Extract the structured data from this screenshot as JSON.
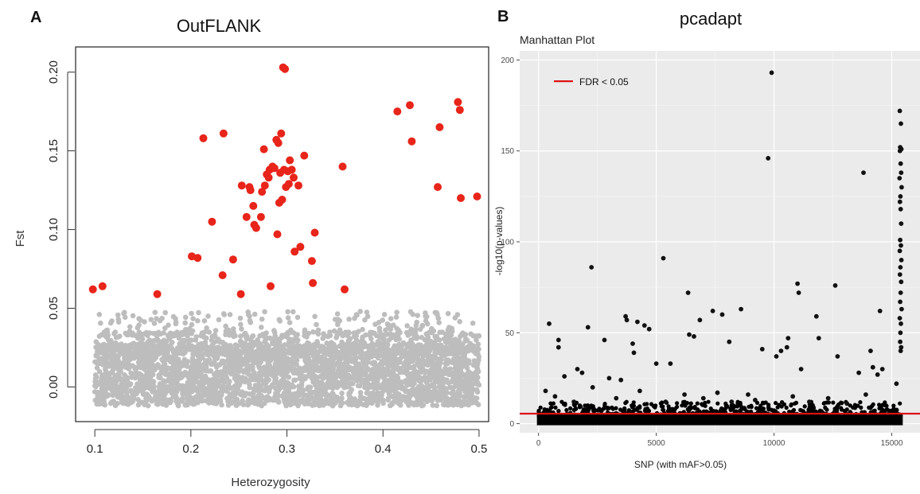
{
  "figure": {
    "label_a": "A",
    "label_b": "B"
  },
  "chart_data": [
    {
      "type": "scatter",
      "panel": "A",
      "title": "OutFLANK",
      "xlabel": "Heterozygosity",
      "ylabel": "Fst",
      "xlim": [
        0.08,
        0.51
      ],
      "ylim": [
        -0.022,
        0.216
      ],
      "xticks": [
        0.1,
        0.2,
        0.3,
        0.4,
        0.5
      ],
      "xtick_labels": [
        "0.1",
        "0.2",
        "0.3",
        "0.4",
        "0.5"
      ],
      "yticks": [
        0.0,
        0.05,
        0.1,
        0.15,
        0.2
      ],
      "ytick_labels": [
        "0.00",
        "0.05",
        "0.10",
        "0.15",
        "0.20"
      ],
      "grid": false,
      "background_cloud": {
        "color": "#bdbdbd",
        "x_range": [
          0.1,
          0.5
        ],
        "y_range": [
          -0.015,
          0.048
        ],
        "description": "non-outlier SNPs"
      },
      "series": [
        {
          "color": "#e8251a",
          "points": [
            [
              0.098,
              0.062
            ],
            [
              0.108,
              0.064
            ],
            [
              0.165,
              0.059
            ],
            [
              0.201,
              0.083
            ],
            [
              0.207,
              0.082
            ],
            [
              0.213,
              0.158
            ],
            [
              0.222,
              0.105
            ],
            [
              0.234,
              0.161
            ],
            [
              0.233,
              0.071
            ],
            [
              0.244,
              0.081
            ],
            [
              0.252,
              0.059
            ],
            [
              0.253,
              0.128
            ],
            [
              0.258,
              0.108
            ],
            [
              0.261,
              0.127
            ],
            [
              0.262,
              0.125
            ],
            [
              0.265,
              0.115
            ],
            [
              0.266,
              0.103
            ],
            [
              0.268,
              0.101
            ],
            [
              0.273,
              0.108
            ],
            [
              0.274,
              0.124
            ],
            [
              0.276,
              0.151
            ],
            [
              0.277,
              0.128
            ],
            [
              0.279,
              0.135
            ],
            [
              0.281,
              0.133
            ],
            [
              0.282,
              0.138
            ],
            [
              0.283,
              0.064
            ],
            [
              0.285,
              0.14
            ],
            [
              0.287,
              0.139
            ],
            [
              0.289,
              0.157
            ],
            [
              0.29,
              0.097
            ],
            [
              0.291,
              0.155
            ],
            [
              0.292,
              0.117
            ],
            [
              0.293,
              0.136
            ],
            [
              0.294,
              0.161
            ],
            [
              0.295,
              0.119
            ],
            [
              0.296,
              0.203
            ],
            [
              0.297,
              0.138
            ],
            [
              0.298,
              0.202
            ],
            [
              0.299,
              0.127
            ],
            [
              0.301,
              0.137
            ],
            [
              0.302,
              0.129
            ],
            [
              0.303,
              0.144
            ],
            [
              0.305,
              0.138
            ],
            [
              0.307,
              0.133
            ],
            [
              0.308,
              0.086
            ],
            [
              0.312,
              0.128
            ],
            [
              0.314,
              0.089
            ],
            [
              0.318,
              0.147
            ],
            [
              0.326,
              0.08
            ],
            [
              0.327,
              0.066
            ],
            [
              0.329,
              0.098
            ],
            [
              0.358,
              0.14
            ],
            [
              0.36,
              0.062
            ],
            [
              0.415,
              0.175
            ],
            [
              0.428,
              0.179
            ],
            [
              0.43,
              0.156
            ],
            [
              0.457,
              0.127
            ],
            [
              0.459,
              0.165
            ],
            [
              0.478,
              0.181
            ],
            [
              0.48,
              0.176
            ],
            [
              0.481,
              0.12
            ],
            [
              0.498,
              0.121
            ]
          ]
        }
      ]
    },
    {
      "type": "scatter",
      "panel": "B",
      "title": "pcadapt",
      "subtitle": "Manhattan Plot",
      "xlabel": "SNP (with mAF>0.05)",
      "ylabel": "-log10(p-values)",
      "xlim": [
        -800,
        16200
      ],
      "ylim": [
        -5,
        205
      ],
      "xticks": [
        0,
        5000,
        10000,
        15000
      ],
      "xtick_labels": [
        "0",
        "5000",
        "10000",
        "15000"
      ],
      "yticks": [
        0,
        50,
        100,
        150,
        200
      ],
      "ytick_labels": [
        "0",
        "50",
        "100",
        "150",
        "200"
      ],
      "grid": true,
      "panel_background": "#ebebeb",
      "legend": {
        "position": "top-left",
        "entries": [
          {
            "label": "FDR < 0.05",
            "color": "#dd1111"
          }
        ]
      },
      "threshold_line": {
        "y": 5.5,
        "color": "#dd1111"
      },
      "dense_band": {
        "y_range": [
          0,
          5
        ],
        "color": "#000000",
        "description": "non-significant SNPs along baseline"
      },
      "series": [
        {
          "color": "#111111",
          "points": [
            [
              9900,
              193
            ],
            [
              9750,
              146
            ],
            [
              13800,
              138
            ],
            [
              5300,
              91
            ],
            [
              2250,
              86
            ],
            [
              6350,
              72
            ],
            [
              11000,
              77
            ],
            [
              11050,
              72
            ],
            [
              12600,
              76
            ],
            [
              8600,
              63
            ],
            [
              7400,
              62
            ],
            [
              7800,
              60
            ],
            [
              11800,
              59
            ],
            [
              14500,
              62
            ],
            [
              3700,
              59
            ],
            [
              3750,
              57
            ],
            [
              4200,
              56
            ],
            [
              4500,
              54
            ],
            [
              4700,
              52
            ],
            [
              2100,
              53
            ],
            [
              450,
              55
            ],
            [
              850,
              46
            ],
            [
              850,
              42
            ],
            [
              2800,
              46
            ],
            [
              10600,
              47
            ],
            [
              11900,
              47
            ],
            [
              6600,
              48
            ],
            [
              6400,
              49
            ],
            [
              6850,
              57
            ],
            [
              9500,
              41
            ],
            [
              10300,
              40
            ],
            [
              10100,
              37
            ],
            [
              10550,
              42
            ],
            [
              11150,
              30
            ],
            [
              8100,
              45
            ],
            [
              4000,
              44
            ],
            [
              4050,
              39
            ],
            [
              1850,
              28
            ],
            [
              1650,
              30
            ],
            [
              1100,
              26
            ],
            [
              12700,
              37
            ],
            [
              14100,
              40
            ],
            [
              14200,
              31
            ],
            [
              14400,
              27
            ],
            [
              14600,
              30
            ],
            [
              13600,
              28
            ],
            [
              15200,
              22
            ],
            [
              3000,
              25
            ],
            [
              3500,
              24
            ],
            [
              5000,
              33
            ],
            [
              5600,
              33
            ],
            [
              15340,
              172
            ],
            [
              15390,
              165
            ],
            [
              15360,
              152
            ],
            [
              15410,
              151
            ],
            [
              15350,
              150
            ],
            [
              15380,
              143
            ],
            [
              15400,
              138
            ],
            [
              15330,
              135
            ],
            [
              15420,
              130
            ],
            [
              15370,
              125
            ],
            [
              15350,
              122
            ],
            [
              15380,
              118
            ],
            [
              15400,
              110
            ],
            [
              15360,
              101
            ],
            [
              15390,
              98
            ],
            [
              15340,
              95
            ],
            [
              15410,
              90
            ],
            [
              15370,
              86
            ],
            [
              15350,
              82
            ],
            [
              15400,
              78
            ],
            [
              15380,
              72
            ],
            [
              15360,
              67
            ],
            [
              15420,
              63
            ],
            [
              15340,
              58
            ],
            [
              15390,
              55
            ],
            [
              15370,
              50
            ],
            [
              15360,
              45
            ],
            [
              15400,
              42
            ],
            [
              15380,
              40
            ],
            [
              300,
              18
            ],
            [
              700,
              15
            ],
            [
              1500,
              12
            ],
            [
              2300,
              20
            ],
            [
              3300,
              14
            ],
            [
              4300,
              18
            ],
            [
              5400,
              12
            ],
            [
              6200,
              16
            ],
            [
              7000,
              14
            ],
            [
              7600,
              17
            ],
            [
              8200,
              12
            ],
            [
              8900,
              16
            ],
            [
              9200,
              13
            ],
            [
              10800,
              15
            ],
            [
              11500,
              12
            ],
            [
              12300,
              14
            ],
            [
              13100,
              11
            ],
            [
              13900,
              16
            ]
          ]
        }
      ]
    }
  ]
}
